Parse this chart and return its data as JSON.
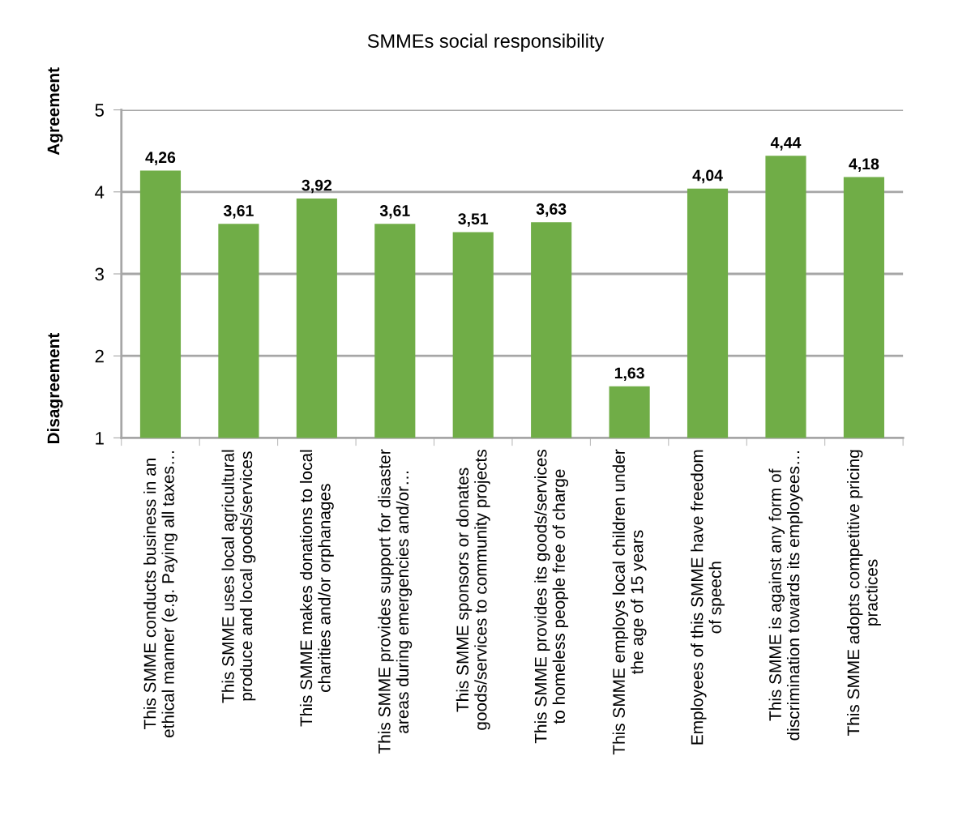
{
  "chart_data": {
    "type": "bar",
    "title": "SMMEs social responsibility",
    "categories": [
      "This SMME conducts business in an\nethical manner (e.g. Paying all taxes…",
      "This SMME uses local agricultural\nproduce and local goods/services",
      "This SMME makes donations to local\ncharities and/or orphanages",
      "This SMME provides support for disaster\nareas during emergencies and/or…",
      "This SMME sponsors or donates\ngoods/services to community projects",
      "This SMME provides its goods/services\nto homeless people free of charge",
      "This SMME employs local children under\nthe age of 15 years",
      "Employees of this SMME have freedom\nof speech",
      "This SMME is against any form of\ndiscrimination towards its employees…",
      "This SMME adopts competitive pricing\npractices"
    ],
    "values": [
      4.26,
      3.61,
      3.92,
      3.61,
      3.51,
      3.63,
      1.63,
      4.04,
      4.44,
      4.18
    ],
    "value_labels": [
      "4,26",
      "3,61",
      "3,92",
      "3,61",
      "3,51",
      "3,63",
      "1,63",
      "4,04",
      "4,44",
      "4,18"
    ],
    "color": "#70ad47",
    "ylim": [
      1,
      5
    ],
    "yticks": [
      1,
      2,
      3,
      4,
      5
    ],
    "grid": "y",
    "annotations": [
      "Agreement",
      "Disagreement"
    ]
  }
}
